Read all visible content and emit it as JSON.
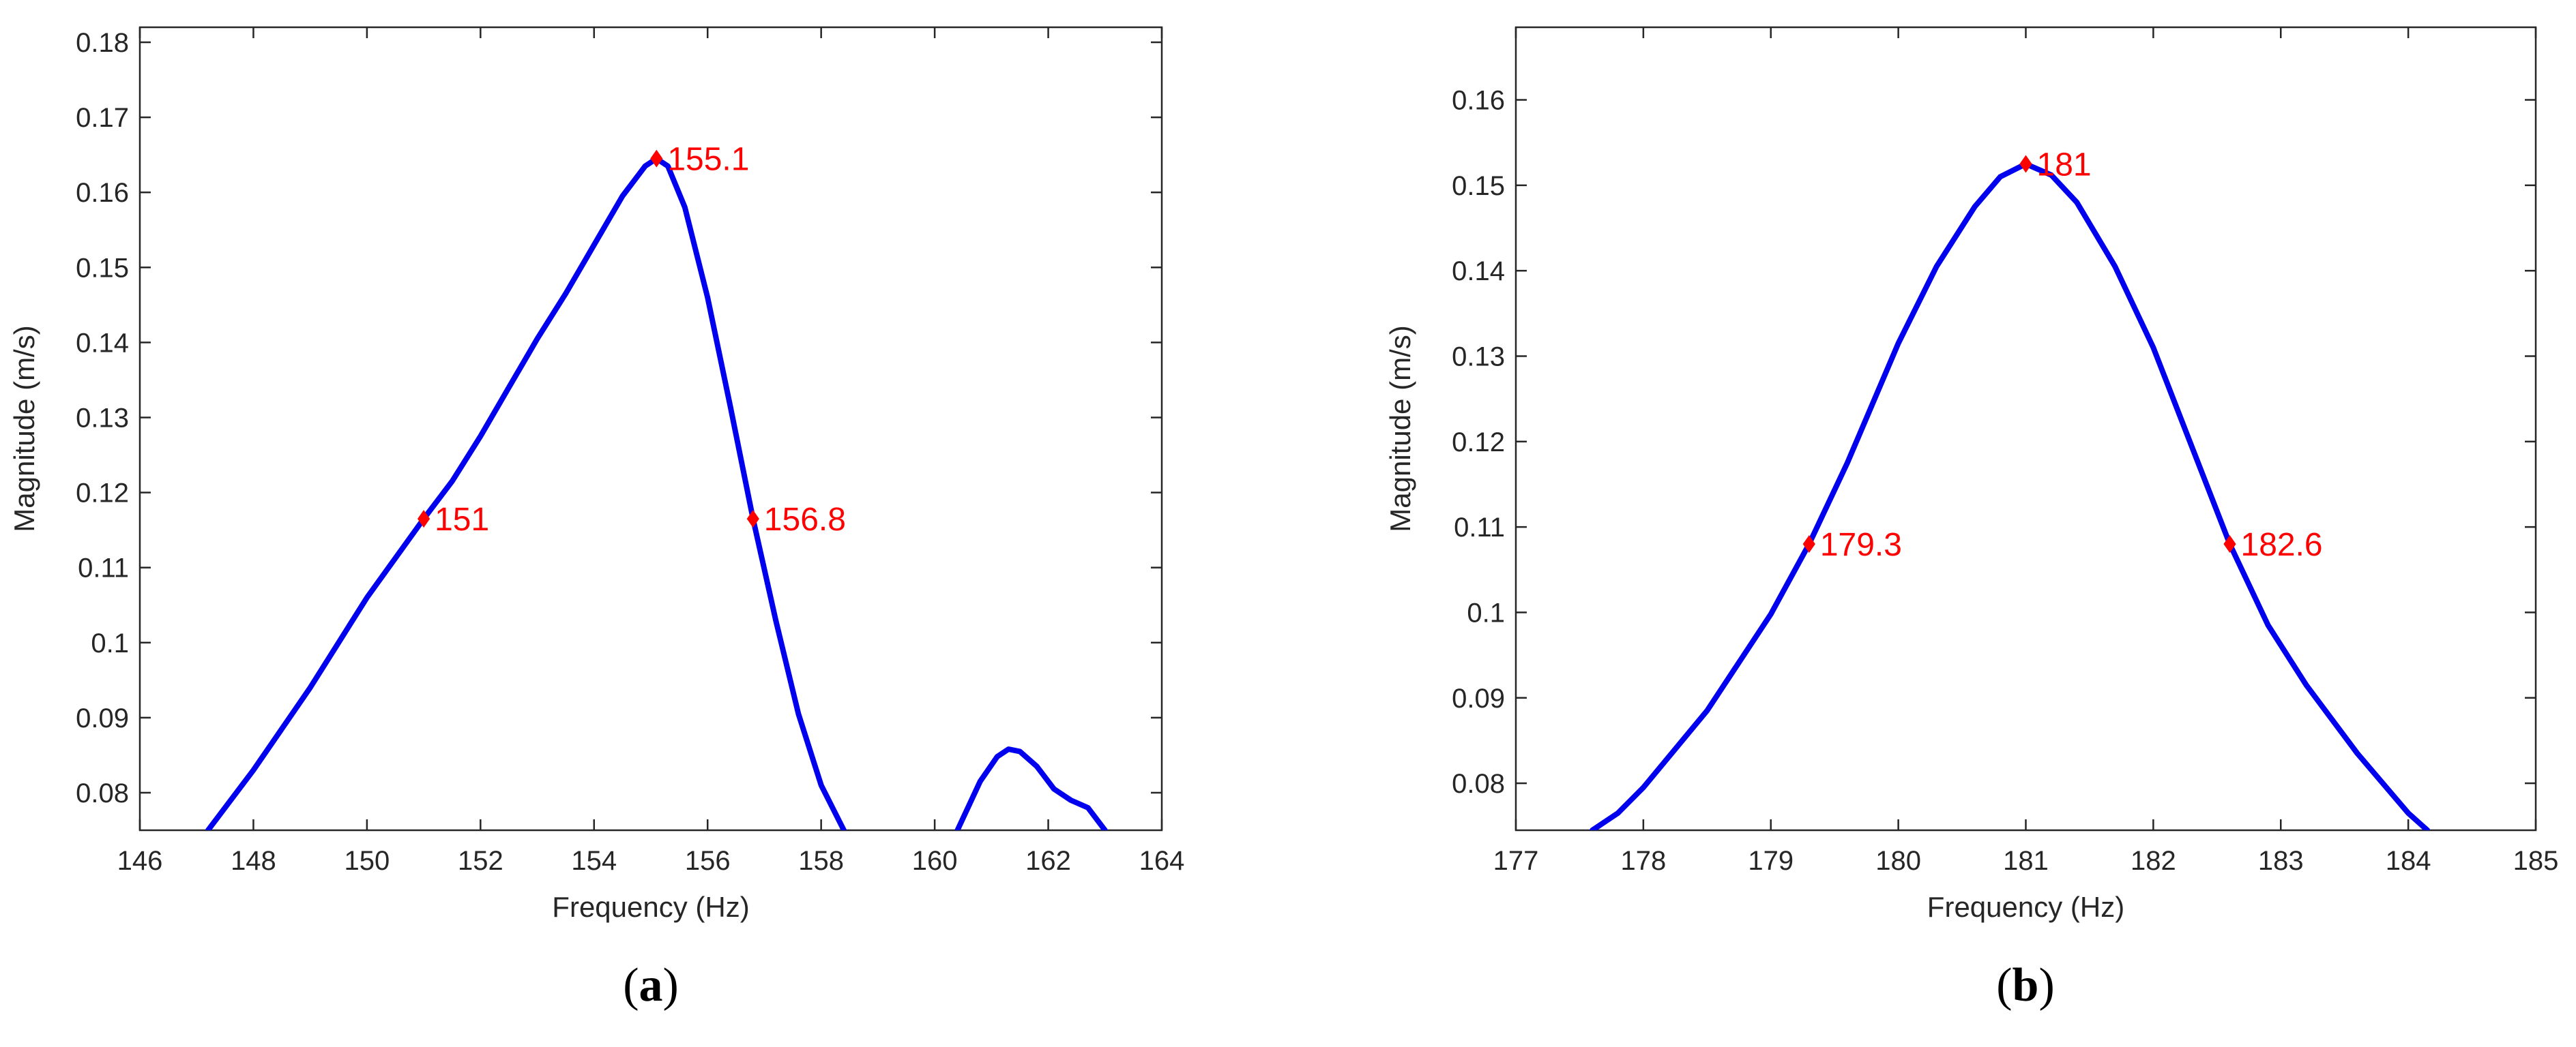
{
  "colors": {
    "curve": "#0000ee",
    "marker": "#ff0000",
    "axis": "#262626",
    "background": "#ffffff"
  },
  "chart_data": [
    {
      "type": "line",
      "panel_label": {
        "open": "(",
        "letter": "a",
        "close": ")"
      },
      "xlabel": "Frequency (Hz)",
      "ylabel": "Magnitude (m/s)",
      "xlim": [
        146,
        164
      ],
      "ylim": [
        0.075,
        0.182
      ],
      "xticks": [
        146,
        148,
        150,
        152,
        154,
        156,
        158,
        160,
        162,
        164
      ],
      "yticks": [
        0.08,
        0.09,
        0.1,
        0.11,
        0.12,
        0.13,
        0.14,
        0.15,
        0.16,
        0.17,
        0.18
      ],
      "ytick_labels": [
        "0.08",
        "0.09",
        "0.1",
        "0.11",
        "0.12",
        "0.13",
        "0.14",
        "0.15",
        "0.16",
        "0.17",
        "0.18"
      ],
      "series": [
        {
          "x": [
            147.2,
            148,
            149,
            150,
            151,
            151.5,
            152,
            152.5,
            153,
            153.5,
            154,
            154.5,
            154.9,
            155.1,
            155.3,
            155.6,
            156,
            156.4,
            156.8,
            157.2,
            157.6,
            158,
            158.4
          ],
          "y": [
            0.075,
            0.083,
            0.094,
            0.106,
            0.1165,
            0.1215,
            0.1275,
            0.134,
            0.1405,
            0.1465,
            0.153,
            0.1595,
            0.1635,
            0.1645,
            0.1635,
            0.158,
            0.146,
            0.1315,
            0.1165,
            0.103,
            0.0905,
            0.081,
            0.075
          ]
        },
        {
          "x": [
            160.4,
            160.8,
            161.1,
            161.3,
            161.5,
            161.8,
            162.1,
            162.4,
            162.7,
            163.0
          ],
          "y": [
            0.075,
            0.0815,
            0.0848,
            0.0858,
            0.0855,
            0.0835,
            0.0805,
            0.079,
            0.078,
            0.075
          ]
        }
      ],
      "markers": [
        {
          "x": 151,
          "y": 0.1165,
          "label": "151"
        },
        {
          "x": 155.1,
          "y": 0.1645,
          "label": "155.1"
        },
        {
          "x": 156.8,
          "y": 0.1165,
          "label": "156.8"
        }
      ]
    },
    {
      "type": "line",
      "panel_label": {
        "open": "(",
        "letter": "b",
        "close": ")"
      },
      "xlabel": "Frequency (Hz)",
      "ylabel": "Magnitude (m/s)",
      "xlim": [
        177,
        185
      ],
      "ylim": [
        0.0745,
        0.1685
      ],
      "xticks": [
        177,
        178,
        179,
        180,
        181,
        182,
        183,
        184,
        185
      ],
      "yticks": [
        0.08,
        0.09,
        0.1,
        0.11,
        0.12,
        0.13,
        0.14,
        0.15,
        0.16
      ],
      "ytick_labels": [
        "0.08",
        "0.09",
        "0.1",
        "0.11",
        "0.12",
        "0.13",
        "0.14",
        "0.15",
        "0.16"
      ],
      "series": [
        {
          "x": [
            177.6,
            177.8,
            178,
            178.5,
            179,
            179.3,
            179.6,
            180,
            180.3,
            180.6,
            180.8,
            181,
            181.2,
            181.4,
            181.7,
            182,
            182.3,
            182.6,
            182.9,
            183.2,
            183.6,
            184,
            184.15
          ],
          "y": [
            0.0745,
            0.0765,
            0.0795,
            0.0885,
            0.0998,
            0.108,
            0.1175,
            0.1315,
            0.1405,
            0.1475,
            0.151,
            0.1525,
            0.1512,
            0.148,
            0.1405,
            0.131,
            0.1195,
            0.108,
            0.0985,
            0.0915,
            0.0835,
            0.0765,
            0.0745
          ]
        }
      ],
      "markers": [
        {
          "x": 179.3,
          "y": 0.108,
          "label": "179.3"
        },
        {
          "x": 181,
          "y": 0.1525,
          "label": "181"
        },
        {
          "x": 182.6,
          "y": 0.108,
          "label": "182.6"
        }
      ]
    }
  ]
}
